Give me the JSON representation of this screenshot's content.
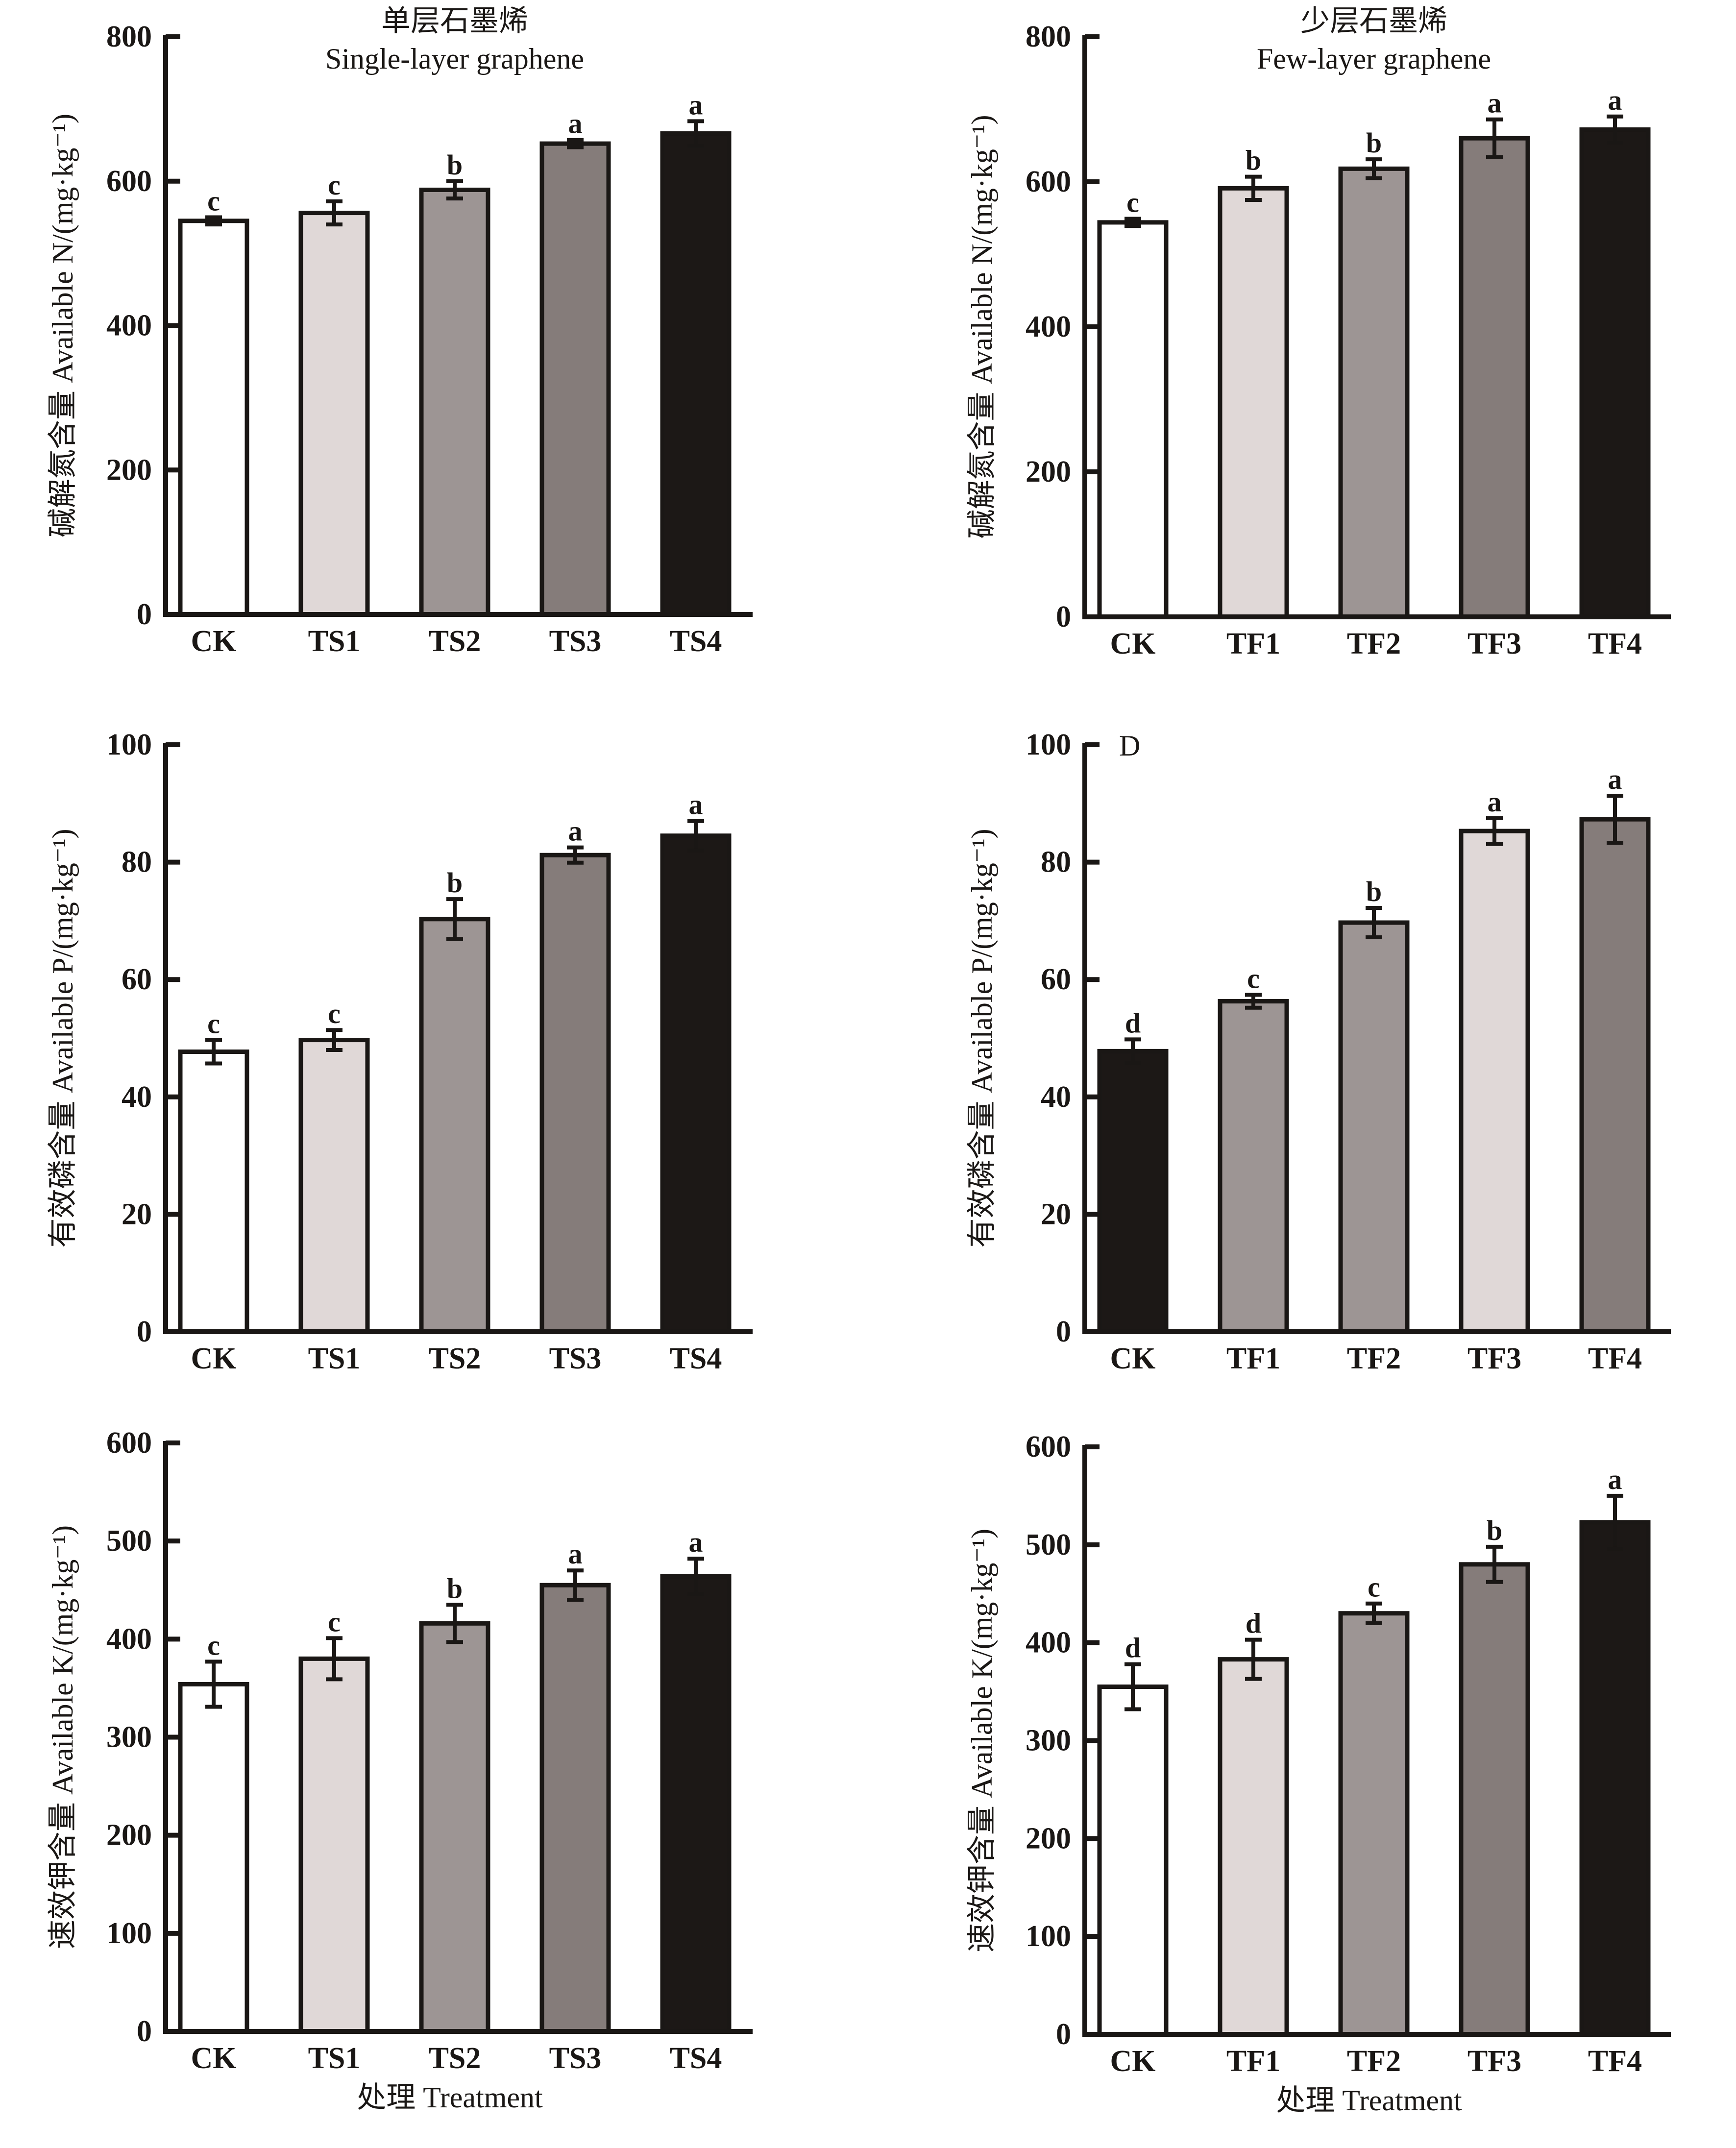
{
  "chart_data": [
    {
      "type": "bar",
      "title": "单层石墨烯",
      "subtitle": "Single-layer graphene",
      "panel_label": "",
      "xlabel": "",
      "ylabel": "碱解氮含量 Available N/(mg·kg⁻¹)",
      "categories": [
        "CK",
        "TS1",
        "TS2",
        "TS3",
        "TS4"
      ],
      "values": [
        545,
        556,
        588,
        652,
        666
      ],
      "errors": [
        5,
        16,
        12,
        5,
        17
      ],
      "significance": [
        "c",
        "c",
        "b",
        "a",
        "a"
      ],
      "fill_colors": [
        "#ffffff",
        "#e0d8d7",
        "#9d9594",
        "#857c7a",
        "#1c1816"
      ],
      "ylim": [
        0,
        800
      ],
      "yticks": [
        "0",
        "200",
        "400",
        "600",
        "800"
      ],
      "grid": false
    },
    {
      "type": "bar",
      "title": "少层石墨烯",
      "subtitle": "Few-layer graphene",
      "panel_label": "",
      "xlabel": "",
      "ylabel": "碱解氮含量 Available N/(mg·kg⁻¹)",
      "categories": [
        "CK",
        "TF1",
        "TF2",
        "TF3",
        "TF4"
      ],
      "values": [
        544,
        591,
        618,
        660,
        672
      ],
      "errors": [
        5,
        16,
        13,
        26,
        18
      ],
      "significance": [
        "c",
        "b",
        "b",
        "a",
        "a"
      ],
      "fill_colors": [
        "#ffffff",
        "#e0d8d7",
        "#9d9594",
        "#857c7a",
        "#1c1816"
      ],
      "ylim": [
        0,
        800
      ],
      "yticks": [
        "0",
        "200",
        "400",
        "600",
        "800"
      ],
      "grid": false
    },
    {
      "type": "bar",
      "title": "",
      "subtitle": "",
      "panel_label": "",
      "xlabel": "",
      "ylabel": "有效磷含量 Available P/(mg·kg⁻¹)",
      "categories": [
        "CK",
        "TS1",
        "TS2",
        "TS3",
        "TS4"
      ],
      "values": [
        47.7,
        49.7,
        70.3,
        81.2,
        84.5
      ],
      "errors": [
        2.0,
        1.7,
        3.4,
        1.3,
        2.5
      ],
      "significance": [
        "c",
        "c",
        "b",
        "a",
        "a"
      ],
      "fill_colors": [
        "#ffffff",
        "#e0d8d7",
        "#9d9594",
        "#857c7a",
        "#1c1816"
      ],
      "ylim": [
        0,
        100
      ],
      "yticks": [
        "0",
        "20",
        "40",
        "60",
        "80",
        "100"
      ],
      "grid": false
    },
    {
      "type": "bar",
      "title": "",
      "subtitle": "",
      "panel_label": "D",
      "xlabel": "",
      "ylabel": "有效磷含量 Available P/(mg·kg⁻¹)",
      "categories": [
        "CK",
        "TF1",
        "TF2",
        "TF3",
        "TF4"
      ],
      "values": [
        47.8,
        56.3,
        69.7,
        85.3,
        87.3
      ],
      "errors": [
        2.0,
        1.1,
        2.5,
        2.2,
        4.0
      ],
      "significance": [
        "d",
        "c",
        "b",
        "a",
        "a"
      ],
      "fill_colors": [
        "#1c1816",
        "#9d9594",
        "#9d9594",
        "#e0d8d7",
        "#857c7a"
      ],
      "ylim": [
        0,
        100
      ],
      "yticks": [
        "0",
        "20",
        "40",
        "60",
        "80",
        "100"
      ],
      "grid": false
    },
    {
      "type": "bar",
      "title": "",
      "subtitle": "",
      "panel_label": "",
      "xlabel": "处理 Treatment",
      "ylabel": "速效钾含量 Available K/(mg·kg⁻¹)",
      "categories": [
        "CK",
        "TS1",
        "TS2",
        "TS3",
        "TS4"
      ],
      "values": [
        354,
        380,
        416,
        455,
        464
      ],
      "errors": [
        23,
        21,
        19,
        15,
        18
      ],
      "significance": [
        "c",
        "c",
        "b",
        "a",
        "a"
      ],
      "fill_colors": [
        "#ffffff",
        "#e0d8d7",
        "#9d9594",
        "#857c7a",
        "#1c1816"
      ],
      "ylim": [
        0,
        600
      ],
      "yticks": [
        "0",
        "100",
        "200",
        "300",
        "400",
        "500",
        "600"
      ],
      "grid": false
    },
    {
      "type": "bar",
      "title": "",
      "subtitle": "",
      "panel_label": "",
      "xlabel": "处理 Treatment",
      "ylabel": "速效钾含量 Available K/(mg·kg⁻¹)",
      "categories": [
        "CK",
        "TF1",
        "TF2",
        "TF3",
        "TF4"
      ],
      "values": [
        355,
        383,
        430,
        480,
        523
      ],
      "errors": [
        23,
        20,
        10,
        18,
        27
      ],
      "significance": [
        "d",
        "d",
        "c",
        "b",
        "a"
      ],
      "fill_colors": [
        "#ffffff",
        "#e0d8d7",
        "#9d9594",
        "#857c7a",
        "#1c1816"
      ],
      "ylim": [
        0,
        600
      ],
      "yticks": [
        "0",
        "100",
        "200",
        "300",
        "400",
        "500",
        "600"
      ],
      "grid": false
    }
  ]
}
